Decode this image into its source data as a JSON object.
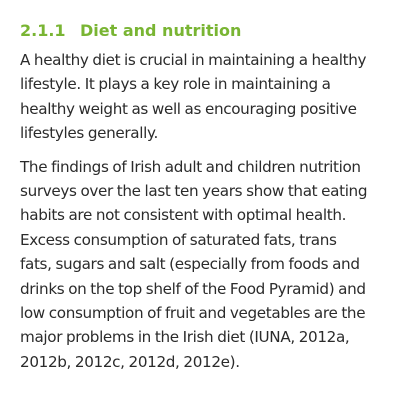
{
  "section": {
    "number": "2.1.1",
    "title": "Diet and nutrition"
  },
  "paragraphs": [
    {
      "lines": [
        "A healthy diet is crucial in maintaining a healthy",
        "lifestyle. It plays a key role in maintaining a",
        "healthy weight as well as encouraging positive",
        "lifestyles generally."
      ]
    },
    {
      "lines": [
        "The findings of Irish adult and children nutrition",
        "surveys over the last ten years show that eating",
        "habits are not consistent with optimal health.",
        "Excess consumption of saturated fats, trans",
        "fats, sugars and salt (especially from foods and",
        "drinks on the top shelf of the Food Pyramid) and",
        "low consumption of fruit and vegetables are the",
        "major problems in the Irish diet (IUNA, 2012a,",
        "2012b, 2012c, 2012d, 2012e)."
      ]
    }
  ]
}
